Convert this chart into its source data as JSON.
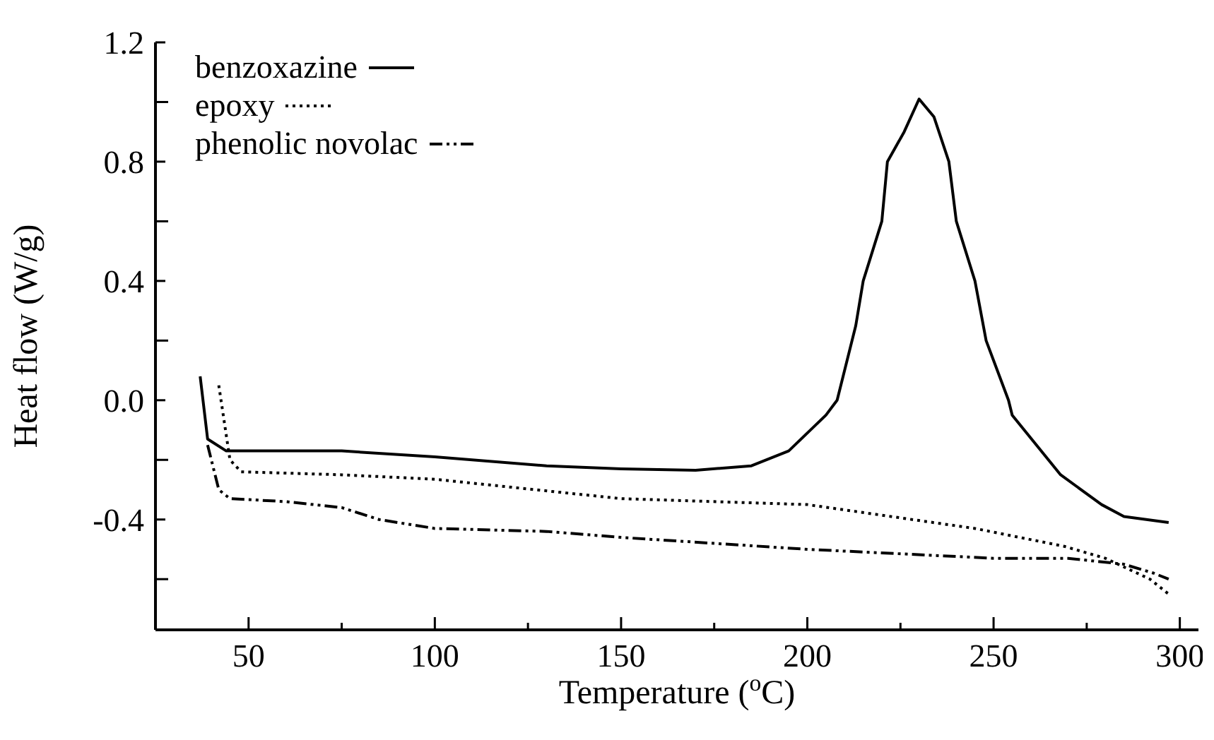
{
  "chart_data": {
    "type": "line",
    "xlabel": "Temperature ($^{o}$C)",
    "ylabel": "Heat flow  (W/g)",
    "xlim": [
      25,
      305
    ],
    "xticks": [
      50,
      {
        "value": 75,
        "label": null
      },
      100,
      {
        "value": 125,
        "label": null
      },
      150,
      {
        "value": 175,
        "label": null
      },
      200,
      {
        "value": 225,
        "label": null
      },
      250,
      {
        "value": 275,
        "label": null
      },
      300
    ],
    "ylim": [
      -0.77,
      1.2
    ],
    "yticks": [
      {
        "value": -0.6,
        "label": null
      },
      -0.4,
      {
        "value": -0.2,
        "label": null
      },
      {
        "value": 0,
        "label": "0.0"
      },
      {
        "value": 0.2,
        "label": null
      },
      0.4,
      {
        "value": 0.6,
        "label": null
      },
      0.8,
      {
        "value": 1.0,
        "label": null
      },
      1.2
    ],
    "legend": "top left",
    "marker": "none",
    "series": [
      {
        "name": "benzoxazine",
        "color": "#000000",
        "line_style": "solid",
        "x": [
          37,
          39,
          44,
          75,
          100,
          130,
          150,
          170,
          185,
          195,
          205,
          208,
          213,
          215,
          220,
          221.5,
          226,
          230,
          234,
          238,
          240,
          245,
          248,
          254,
          255,
          268,
          279,
          285,
          297
        ],
        "values": [
          0.08,
          -0.13,
          -0.17,
          -0.17,
          -0.19,
          -0.22,
          -0.23,
          -0.235,
          -0.22,
          -0.17,
          -0.05,
          0,
          0.25,
          0.4,
          0.6,
          0.8,
          0.9,
          1.01,
          0.95,
          0.8,
          0.6,
          0.4,
          0.2,
          0,
          -0.05,
          -0.25,
          -0.35,
          -0.39,
          -0.41
        ]
      },
      {
        "name": "epoxy",
        "color": "#000000",
        "line_style": "dotted",
        "x": [
          42,
          45,
          48,
          75,
          100,
          150,
          200,
          245,
          269,
          280,
          292,
          297
        ],
        "values": [
          0.05,
          -0.2,
          -0.24,
          -0.25,
          -0.265,
          -0.33,
          -0.35,
          -0.43,
          -0.49,
          -0.53,
          -0.6,
          -0.65
        ]
      },
      {
        "name": "phenolic novolac",
        "color": "#000000",
        "line_style": "dashed",
        "x": [
          39,
          42,
          45,
          60,
          75,
          85,
          100,
          130,
          150,
          200,
          250,
          270,
          285,
          293,
          297
        ],
        "values": [
          -0.15,
          -0.3,
          -0.33,
          -0.34,
          -0.36,
          -0.4,
          -0.43,
          -0.44,
          -0.46,
          -0.5,
          -0.53,
          -0.53,
          -0.55,
          -0.58,
          -0.6
        ]
      }
    ]
  }
}
